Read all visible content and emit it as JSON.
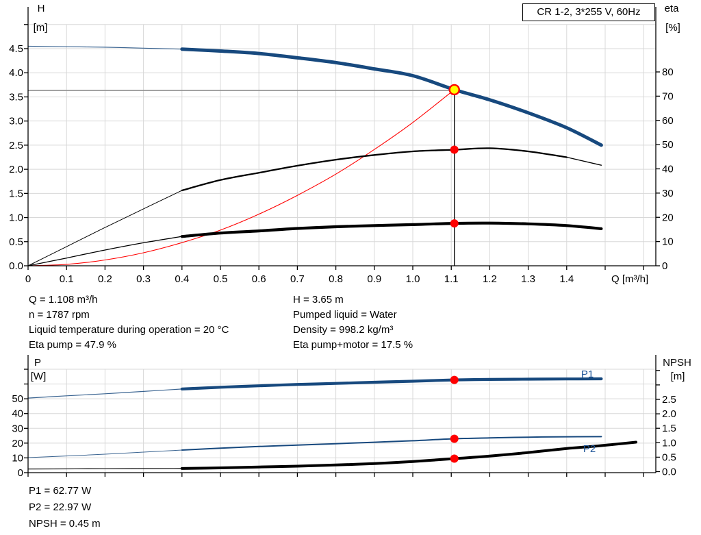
{
  "title_box": {
    "label": "CR 1-2, 3*255 V, 60Hz"
  },
  "colors": {
    "curve_blue": "#17497E",
    "label_blue": "#1E5598",
    "black": "#000000",
    "red": "#FF0000",
    "yellow": "#FFFF00",
    "grid": "#D8D8D8",
    "operating_line_gray": "#8C8C8C",
    "background": "#FFFFFF"
  },
  "annotations": {
    "mid_left": [
      "Q = 1.108 m³/h",
      "n = 1787 rpm",
      "Liquid temperature during operation = 20 °C",
      "Eta pump = 47.9 %"
    ],
    "mid_right": [
      "H = 3.65 m",
      "Pumped liquid = Water",
      "Density = 998.2 kg/m³",
      "Eta pump+motor = 17.5 %"
    ],
    "bottom": [
      "P1 = 62.77 W",
      "P2 = 22.97 W",
      "NPSH = 0.45 m"
    ]
  },
  "chart_data": [
    {
      "id": "qh_chart",
      "type": "line",
      "title": "CR 1-2, 3*255 V, 60Hz",
      "grid": true,
      "x_axis": {
        "label": "Q [m³/h]",
        "range": [
          0,
          1.632
        ],
        "ticks": [
          {
            "v": 0,
            "label": "0"
          },
          {
            "v": 0.1,
            "label": "0.1"
          },
          {
            "v": 0.2,
            "label": "0.2"
          },
          {
            "v": 0.3,
            "label": "0.3"
          },
          {
            "v": 0.4,
            "label": "0.4"
          },
          {
            "v": 0.5,
            "label": "0.5"
          },
          {
            "v": 0.6,
            "label": "0.6"
          },
          {
            "v": 0.7,
            "label": "0.7"
          },
          {
            "v": 0.8,
            "label": "0.8"
          },
          {
            "v": 0.9,
            "label": "0.9"
          },
          {
            "v": 1.0,
            "label": "1.0"
          },
          {
            "v": 1.1,
            "label": "1.1"
          },
          {
            "v": 1.2,
            "label": "1.2"
          },
          {
            "v": 1.3,
            "label": "1.3"
          },
          {
            "v": 1.4,
            "label": "1.4"
          }
        ],
        "unlabeled_ticks": [
          1.5,
          1.6
        ]
      },
      "y_left": {
        "label_line1": "H",
        "label_line2": "[m]",
        "range": [
          0,
          5.0
        ],
        "ticks": [
          {
            "v": 0.0,
            "label": "0.0"
          },
          {
            "v": 0.5,
            "label": "0.5"
          },
          {
            "v": 1.0,
            "label": "1.0"
          },
          {
            "v": 1.5,
            "label": "1.5"
          },
          {
            "v": 2.0,
            "label": "2.0"
          },
          {
            "v": 2.5,
            "label": "2.5"
          },
          {
            "v": 3.0,
            "label": "3.0"
          },
          {
            "v": 3.5,
            "label": "3.5"
          },
          {
            "v": 4.0,
            "label": "4.0"
          },
          {
            "v": 4.5,
            "label": "4.5"
          }
        ],
        "unlabeled_ticks": [
          5.0
        ]
      },
      "y_right": {
        "label_line1": "eta",
        "label_line2": "[%]",
        "range": [
          0,
          100
        ],
        "ticks": [
          {
            "v": 0,
            "label": "0"
          },
          {
            "v": 10,
            "label": "10"
          },
          {
            "v": 20,
            "label": "20"
          },
          {
            "v": 30,
            "label": "30"
          },
          {
            "v": 40,
            "label": "40"
          },
          {
            "v": 50,
            "label": "50"
          },
          {
            "v": 60,
            "label": "60"
          },
          {
            "v": 70,
            "label": "70"
          },
          {
            "v": 80,
            "label": "80"
          }
        ],
        "unlabeled_ticks": []
      },
      "series": [
        {
          "id": "h_curve",
          "name": "H (head)",
          "axis": "left",
          "points": [
            [
              0,
              4.55
            ],
            [
              0.1,
              4.54
            ],
            [
              0.2,
              4.53
            ],
            [
              0.3,
              4.51
            ],
            [
              0.4,
              4.49
            ],
            [
              0.5,
              4.45
            ],
            [
              0.6,
              4.4
            ],
            [
              0.7,
              4.31
            ],
            [
              0.8,
              4.21
            ],
            [
              0.9,
              4.08
            ],
            [
              1.0,
              3.94
            ],
            [
              1.108,
              3.65
            ],
            [
              1.2,
              3.44
            ],
            [
              1.3,
              3.17
            ],
            [
              1.4,
              2.86
            ],
            [
              1.49,
              2.5
            ]
          ]
        },
        {
          "id": "eta_pump",
          "name": "Eta pump",
          "axis": "right",
          "points": [
            [
              0,
              0
            ],
            [
              0.1,
              7.9
            ],
            [
              0.2,
              15.8
            ],
            [
              0.3,
              23.5
            ],
            [
              0.4,
              31.1
            ],
            [
              0.5,
              35.4
            ],
            [
              0.6,
              38.4
            ],
            [
              0.7,
              41.3
            ],
            [
              0.8,
              43.8
            ],
            [
              0.9,
              45.7
            ],
            [
              1.0,
              47.2
            ],
            [
              1.108,
              47.9
            ],
            [
              1.2,
              48.5
            ],
            [
              1.3,
              47.2
            ],
            [
              1.4,
              44.8
            ],
            [
              1.49,
              41.5
            ]
          ]
        },
        {
          "id": "eta_pump_motor",
          "name": "Eta pump+motor",
          "axis": "right",
          "points": [
            [
              0,
              0
            ],
            [
              0.1,
              3.2
            ],
            [
              0.2,
              6.5
            ],
            [
              0.3,
              9.5
            ],
            [
              0.4,
              12.1
            ],
            [
              0.5,
              13.5
            ],
            [
              0.6,
              14.4
            ],
            [
              0.7,
              15.4
            ],
            [
              0.8,
              16.1
            ],
            [
              0.9,
              16.6
            ],
            [
              1.0,
              17.0
            ],
            [
              1.108,
              17.5
            ],
            [
              1.2,
              17.6
            ],
            [
              1.3,
              17.3
            ],
            [
              1.4,
              16.6
            ],
            [
              1.49,
              15.3
            ]
          ]
        },
        {
          "id": "system_curve",
          "name": "System resistance curve",
          "axis": "left",
          "points": [
            [
              0,
              0
            ],
            [
              0.1,
              0.03
            ],
            [
              0.2,
              0.12
            ],
            [
              0.3,
              0.27
            ],
            [
              0.4,
              0.48
            ],
            [
              0.5,
              0.74
            ],
            [
              0.6,
              1.07
            ],
            [
              0.7,
              1.46
            ],
            [
              0.8,
              1.9
            ],
            [
              0.9,
              2.41
            ],
            [
              1.0,
              2.97
            ],
            [
              1.108,
              3.65
            ]
          ]
        }
      ],
      "duty_point": {
        "q": 1.108,
        "h": 3.65,
        "eta_pump": 47.9,
        "eta_pump_motor": 17.5
      }
    },
    {
      "id": "power_chart",
      "type": "line",
      "grid": true,
      "x_axis": {
        "label": "",
        "range": [
          0,
          1.632
        ],
        "ticks": [],
        "unlabeled_ticks": [
          0,
          0.1,
          0.2,
          0.3,
          0.4,
          0.5,
          0.6,
          0.7,
          0.8,
          0.9,
          1.0,
          1.1,
          1.2,
          1.3,
          1.4,
          1.5,
          1.6
        ]
      },
      "y_left": {
        "label_line1": "P",
        "label_line2": "[W]",
        "range": [
          0,
          76
        ],
        "ticks": [
          {
            "v": 0,
            "label": "0"
          },
          {
            "v": 10,
            "label": "10"
          },
          {
            "v": 20,
            "label": "20"
          },
          {
            "v": 30,
            "label": "30"
          },
          {
            "v": 40,
            "label": "40"
          },
          {
            "v": 50,
            "label": "50"
          }
        ],
        "unlabeled_ticks": [
          60,
          70
        ]
      },
      "y_right": {
        "label_line1": "NPSH",
        "label_line2": "[m]",
        "range": [
          0,
          3.6
        ],
        "ticks": [
          {
            "v": 0.0,
            "label": "0.0"
          },
          {
            "v": 0.5,
            "label": "0.5"
          },
          {
            "v": 1.0,
            "label": "1.0"
          },
          {
            "v": 1.5,
            "label": "1.5"
          },
          {
            "v": 2.0,
            "label": "2.0"
          },
          {
            "v": 2.5,
            "label": "2.5"
          }
        ],
        "unlabeled_ticks": [
          3.0,
          3.5
        ]
      },
      "series": [
        {
          "id": "p1",
          "name": "P1",
          "label": "P1",
          "axis": "left",
          "points": [
            [
              0,
              50.5
            ],
            [
              0.1,
              52.0
            ],
            [
              0.2,
              53.4
            ],
            [
              0.3,
              55.0
            ],
            [
              0.4,
              56.6
            ],
            [
              0.5,
              57.8
            ],
            [
              0.6,
              58.8
            ],
            [
              0.7,
              59.7
            ],
            [
              0.8,
              60.4
            ],
            [
              0.9,
              61.2
            ],
            [
              1.0,
              61.9
            ],
            [
              1.108,
              62.77
            ],
            [
              1.2,
              63.1
            ],
            [
              1.3,
              63.3
            ],
            [
              1.4,
              63.4
            ],
            [
              1.49,
              63.5
            ]
          ]
        },
        {
          "id": "p2",
          "name": "P2",
          "label": "P2",
          "axis": "left",
          "points": [
            [
              0,
              10.2
            ],
            [
              0.1,
              11.3
            ],
            [
              0.2,
              12.5
            ],
            [
              0.3,
              13.9
            ],
            [
              0.4,
              15.3
            ],
            [
              0.5,
              16.6
            ],
            [
              0.6,
              17.7
            ],
            [
              0.7,
              18.7
            ],
            [
              0.8,
              19.6
            ],
            [
              0.9,
              20.6
            ],
            [
              1.0,
              21.6
            ],
            [
              1.108,
              22.97
            ],
            [
              1.2,
              23.5
            ],
            [
              1.3,
              24.0
            ],
            [
              1.4,
              24.3
            ],
            [
              1.49,
              24.4
            ]
          ]
        },
        {
          "id": "npsh",
          "name": "NPSH",
          "axis": "right",
          "points": [
            [
              0,
              0.09
            ],
            [
              0.2,
              0.1
            ],
            [
              0.4,
              0.11
            ],
            [
              0.5,
              0.13
            ],
            [
              0.6,
              0.16
            ],
            [
              0.7,
              0.19
            ],
            [
              0.8,
              0.23
            ],
            [
              0.9,
              0.28
            ],
            [
              1.0,
              0.35
            ],
            [
              1.108,
              0.45
            ],
            [
              1.2,
              0.54
            ],
            [
              1.3,
              0.66
            ],
            [
              1.4,
              0.8
            ],
            [
              1.49,
              0.9
            ],
            [
              1.58,
              1.02
            ]
          ]
        }
      ],
      "duty_point": {
        "q": 1.108,
        "p1": 62.77,
        "p2": 22.97,
        "npsh": 0.45
      }
    }
  ]
}
